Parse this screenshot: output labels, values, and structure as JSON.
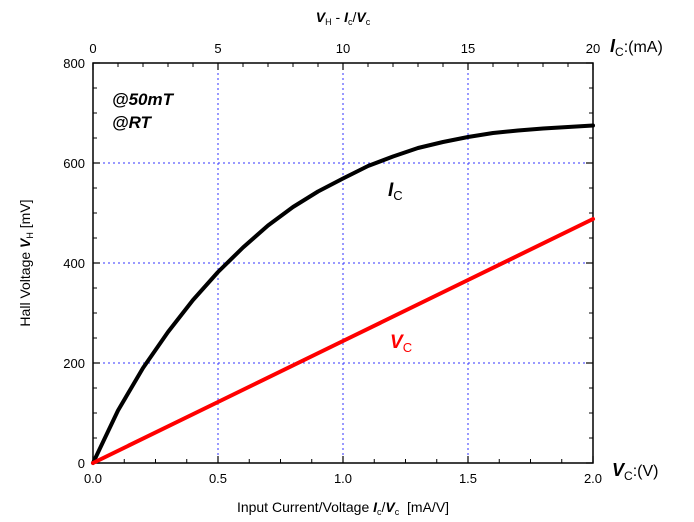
{
  "chart_data": {
    "type": "line",
    "top_title": {
      "part1": "V",
      "part1_sub": "H",
      "sep": " - ",
      "part2": "I",
      "part2_sub": "c",
      "slash": "/",
      "part3": "V",
      "part3_sub": "c"
    },
    "ylabel": {
      "prefix": "Hall Voltage ",
      "sym": "V",
      "sub": "H",
      "unit": " [mV]"
    },
    "xlabel": {
      "prefix": "Input Current/Voltage ",
      "sym1": "I",
      "sub1": "c",
      "slash": "/",
      "sym2": "V",
      "sub2": "c",
      "unit": "  [mA/V]"
    },
    "top_axis_label": {
      "sym": "I",
      "sub": "C",
      "unit": ":(mA)"
    },
    "right_axis_label": {
      "sym": "V",
      "sub": "C",
      "unit": ":(V)"
    },
    "annotations": {
      "line1": "@50mT",
      "line2": "@RT"
    },
    "xlim": [
      0,
      2.0
    ],
    "ylim": [
      0,
      800
    ],
    "top_xlim": [
      0,
      20
    ],
    "x_ticks": [
      "0.0",
      "0.5",
      "1.0",
      "1.5",
      "2.0"
    ],
    "x_tick_values": [
      0,
      0.5,
      1.0,
      1.5,
      2.0
    ],
    "y_ticks": [
      "0",
      "200",
      "400",
      "600",
      "800"
    ],
    "y_tick_values": [
      0,
      200,
      400,
      600,
      800
    ],
    "top_ticks": [
      "0",
      "5",
      "10",
      "15",
      "20"
    ],
    "top_tick_values": [
      0,
      5,
      10,
      15,
      20
    ],
    "grid": true,
    "series": [
      {
        "name": "I",
        "name_sub": "C",
        "color": "#000000",
        "axis": "top",
        "x": [
          0,
          1,
          2,
          3,
          4,
          5,
          6,
          7,
          8,
          9,
          10,
          11,
          12,
          13,
          14,
          15,
          16,
          17,
          18,
          19,
          20
        ],
        "y": [
          0,
          105,
          190,
          262,
          326,
          382,
          431,
          475,
          512,
          543,
          569,
          594,
          613,
          630,
          642,
          652,
          660,
          665,
          669,
          672,
          675
        ]
      },
      {
        "name": "V",
        "name_sub": "C",
        "color": "#ff0000",
        "axis": "bottom",
        "x": [
          0,
          0.5,
          1.0,
          1.5,
          2.0
        ],
        "y": [
          0,
          122,
          244,
          366,
          488
        ]
      }
    ]
  }
}
